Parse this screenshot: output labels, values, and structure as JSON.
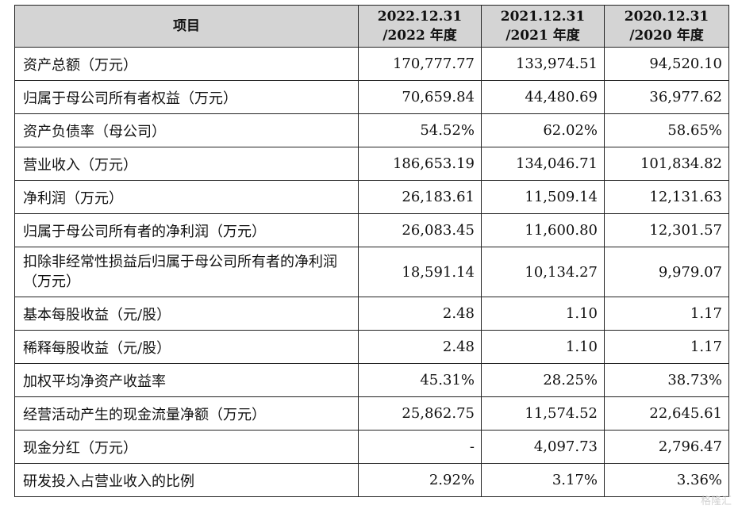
{
  "table": {
    "headers": [
      {
        "line1": "项目",
        "line2": ""
      },
      {
        "line1": "2022.12.31",
        "line2": "/2022 年度"
      },
      {
        "line1": "2021.12.31",
        "line2": "/2021 年度"
      },
      {
        "line1": "2020.12.31",
        "line2": "/2020 年度"
      }
    ],
    "rows": [
      {
        "label": "资产总额（万元）",
        "v2022": "170,777.77",
        "v2021": "133,974.51",
        "v2020": "94,520.10"
      },
      {
        "label": "归属于母公司所有者权益（万元）",
        "v2022": "70,659.84",
        "v2021": "44,480.69",
        "v2020": "36,977.62"
      },
      {
        "label": "资产负债率（母公司）",
        "v2022": "54.52%",
        "v2021": "62.02%",
        "v2020": "58.65%"
      },
      {
        "label": "营业收入（万元）",
        "v2022": "186,653.19",
        "v2021": "134,046.71",
        "v2020": "101,834.82"
      },
      {
        "label": "净利润（万元）",
        "v2022": "26,183.61",
        "v2021": "11,509.14",
        "v2020": "12,131.63"
      },
      {
        "label": "归属于母公司所有者的净利润（万元）",
        "v2022": "26,083.45",
        "v2021": "11,600.80",
        "v2020": "12,301.57"
      },
      {
        "label": "扣除非经常性损益后归属于母公司所有者的净利润（万元）",
        "v2022": "18,591.14",
        "v2021": "10,134.27",
        "v2020": "9,979.07"
      },
      {
        "label": "基本每股收益（元/股）",
        "v2022": "2.48",
        "v2021": "1.10",
        "v2020": "1.17"
      },
      {
        "label": "稀释每股收益（元/股）",
        "v2022": "2.48",
        "v2021": "1.10",
        "v2020": "1.17"
      },
      {
        "label": "加权平均净资产收益率",
        "v2022": "45.31%",
        "v2021": "28.25%",
        "v2020": "38.73%"
      },
      {
        "label": "经营活动产生的现金流量净额（万元）",
        "v2022": "25,862.75",
        "v2021": "11,574.52",
        "v2020": "22,645.61"
      },
      {
        "label": "现金分红（万元）",
        "v2022": "-",
        "v2021": "4,097.73",
        "v2020": "2,796.47"
      },
      {
        "label": "研发投入占营业收入的比例",
        "v2022": "2.92%",
        "v2021": "3.17%",
        "v2020": "3.36%"
      }
    ]
  },
  "watermark": {
    "text": "格隆汇"
  }
}
